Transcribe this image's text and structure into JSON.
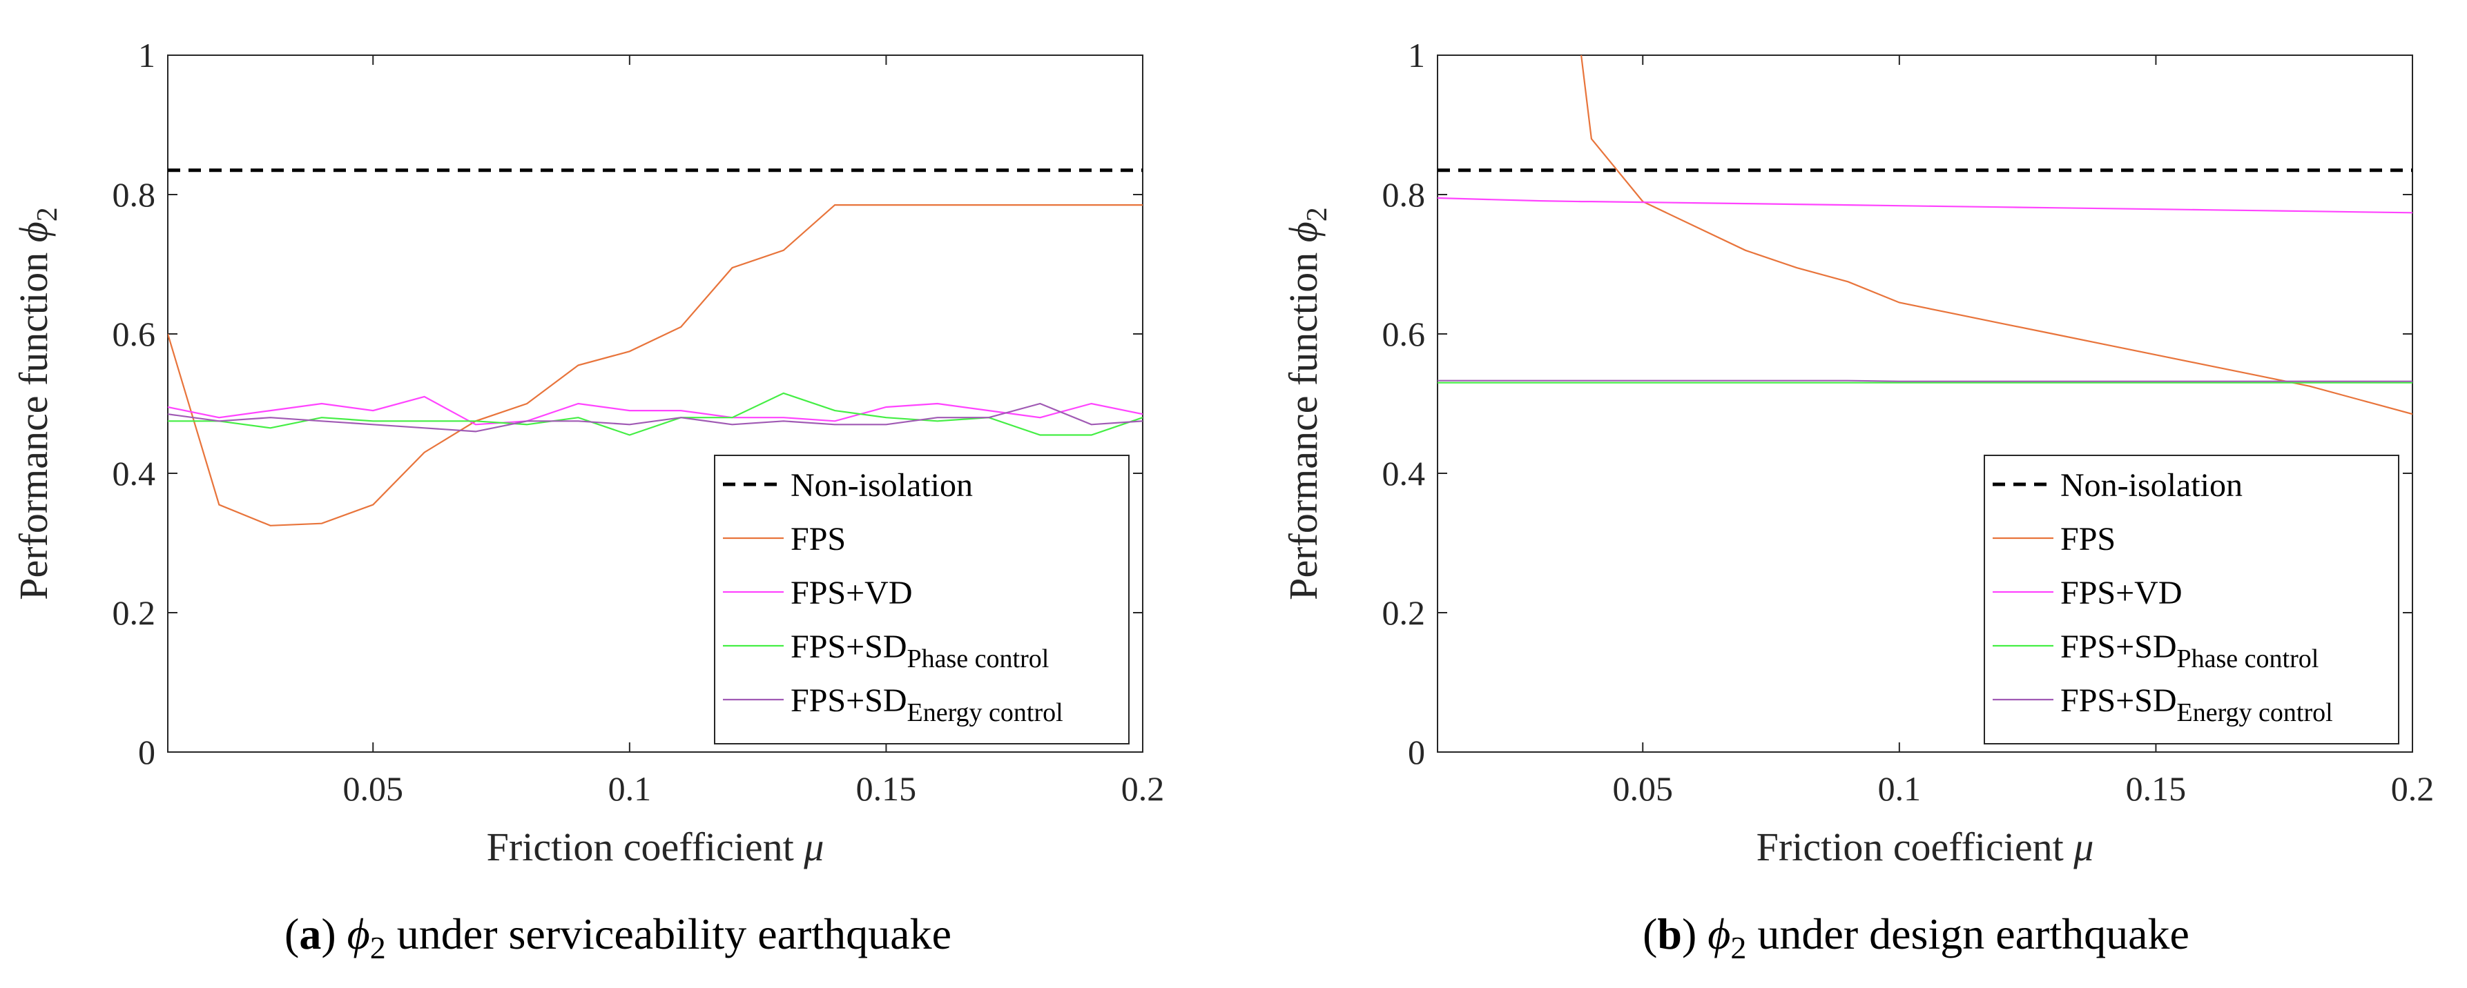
{
  "chart_data": [
    {
      "type": "line",
      "caption_letter": "a",
      "caption_symbol": "ϕ",
      "caption_subscript": "2",
      "caption_rest": " under serviceability earthquake",
      "ylabel_main": "Performance function ",
      "ylabel_symbol": "ϕ",
      "ylabel_subscript": "2",
      "xlabel_main": "Friction coefficient ",
      "xlabel_symbol": "μ",
      "xlim": [
        0.01,
        0.2
      ],
      "ylim": [
        0,
        1
      ],
      "xticks": [
        {
          "v": 0.05,
          "label": "0.05"
        },
        {
          "v": 0.1,
          "label": "0.1"
        },
        {
          "v": 0.15,
          "label": "0.15"
        },
        {
          "v": 0.2,
          "label": "0.2"
        }
      ],
      "yticks": [
        {
          "v": 0,
          "label": "0"
        },
        {
          "v": 0.2,
          "label": "0.2"
        },
        {
          "v": 0.4,
          "label": "0.4"
        },
        {
          "v": 0.6,
          "label": "0.6"
        },
        {
          "v": 0.8,
          "label": "0.8"
        },
        {
          "v": 1,
          "label": "1"
        }
      ],
      "x": [
        0.01,
        0.02,
        0.03,
        0.04,
        0.05,
        0.06,
        0.07,
        0.08,
        0.09,
        0.1,
        0.11,
        0.12,
        0.13,
        0.14,
        0.15,
        0.16,
        0.17,
        0.18,
        0.19,
        0.2
      ],
      "series": [
        {
          "name": "Non-isolation",
          "color": "#000000",
          "dash": true,
          "values": [
            0.835,
            0.835,
            0.835,
            0.835,
            0.835,
            0.835,
            0.835,
            0.835,
            0.835,
            0.835,
            0.835,
            0.835,
            0.835,
            0.835,
            0.835,
            0.835,
            0.835,
            0.835,
            0.835,
            0.835
          ]
        },
        {
          "name": "FPS",
          "color": "#e8743b",
          "dash": false,
          "values": [
            0.6,
            0.355,
            0.325,
            0.328,
            0.355,
            0.43,
            0.475,
            0.5,
            0.555,
            0.575,
            0.61,
            0.695,
            0.72,
            0.785,
            0.785,
            0.785,
            0.785,
            0.785,
            0.785,
            0.785
          ]
        },
        {
          "name": "FPS+VD",
          "color": "#ff44ff",
          "dash": false,
          "values": [
            0.495,
            0.48,
            0.49,
            0.5,
            0.49,
            0.51,
            0.47,
            0.475,
            0.5,
            0.49,
            0.49,
            0.48,
            0.48,
            0.475,
            0.495,
            0.5,
            0.49,
            0.48,
            0.5,
            0.485
          ]
        },
        {
          "name": "FPS+SD",
          "sub": "Phase control",
          "color": "#44ee44",
          "dash": false,
          "values": [
            0.475,
            0.475,
            0.465,
            0.48,
            0.475,
            0.475,
            0.475,
            0.47,
            0.48,
            0.455,
            0.48,
            0.48,
            0.515,
            0.49,
            0.48,
            0.475,
            0.48,
            0.455,
            0.455,
            0.48
          ]
        },
        {
          "name": "FPS+SD",
          "sub": "Energy control",
          "color": "#a05ab4",
          "dash": false,
          "values": [
            0.485,
            0.475,
            0.48,
            0.475,
            0.47,
            0.465,
            0.46,
            0.475,
            0.475,
            0.47,
            0.48,
            0.47,
            0.475,
            0.47,
            0.47,
            0.48,
            0.48,
            0.5,
            0.47,
            0.475
          ]
        }
      ]
    },
    {
      "type": "line",
      "caption_letter": "b",
      "caption_symbol": "ϕ",
      "caption_subscript": "2",
      "caption_rest": " under design earthquake",
      "ylabel_main": "Performance function ",
      "ylabel_symbol": "ϕ",
      "ylabel_subscript": "2",
      "xlabel_main": "Friction coefficient ",
      "xlabel_symbol": "μ",
      "xlim": [
        0.01,
        0.2
      ],
      "ylim": [
        0,
        1
      ],
      "xticks": [
        {
          "v": 0.05,
          "label": "0.05"
        },
        {
          "v": 0.1,
          "label": "0.1"
        },
        {
          "v": 0.15,
          "label": "0.15"
        },
        {
          "v": 0.2,
          "label": "0.2"
        }
      ],
      "yticks": [
        {
          "v": 0,
          "label": "0"
        },
        {
          "v": 0.2,
          "label": "0.2"
        },
        {
          "v": 0.4,
          "label": "0.4"
        },
        {
          "v": 0.6,
          "label": "0.6"
        },
        {
          "v": 0.8,
          "label": "0.8"
        },
        {
          "v": 1,
          "label": "1"
        }
      ],
      "x": [
        0.01,
        0.02,
        0.03,
        0.038,
        0.04,
        0.05,
        0.06,
        0.07,
        0.08,
        0.09,
        0.1,
        0.11,
        0.12,
        0.13,
        0.14,
        0.15,
        0.16,
        0.17,
        0.18,
        0.19,
        0.2
      ],
      "series": [
        {
          "name": "Non-isolation",
          "color": "#000000",
          "dash": true,
          "values": [
            0.835,
            0.835,
            0.835,
            0.835,
            0.835,
            0.835,
            0.835,
            0.835,
            0.835,
            0.835,
            0.835,
            0.835,
            0.835,
            0.835,
            0.835,
            0.835,
            0.835,
            0.835,
            0.835,
            0.835,
            0.835
          ]
        },
        {
          "name": "FPS",
          "color": "#e8743b",
          "dash": false,
          "values": [
            null,
            null,
            null,
            1.0,
            0.88,
            0.79,
            0.755,
            0.72,
            0.695,
            0.675,
            0.645,
            0.63,
            0.615,
            0.6,
            0.585,
            0.57,
            0.555,
            0.54,
            0.525,
            0.505,
            0.485
          ]
        },
        {
          "name": "FPS+VD",
          "color": "#ff44ff",
          "dash": false,
          "values": [
            0.795,
            0.793,
            0.791,
            0.79,
            0.79,
            0.789,
            0.788,
            0.787,
            0.786,
            0.785,
            0.784,
            0.783,
            0.782,
            0.781,
            0.78,
            0.779,
            0.778,
            0.777,
            0.776,
            0.775,
            0.774
          ]
        },
        {
          "name": "FPS+SD",
          "sub": "Phase control",
          "color": "#44ee44",
          "dash": false,
          "values": [
            0.53,
            0.53,
            0.53,
            0.53,
            0.53,
            0.53,
            0.53,
            0.53,
            0.53,
            0.53,
            0.53,
            0.53,
            0.53,
            0.53,
            0.53,
            0.53,
            0.53,
            0.53,
            0.53,
            0.53,
            0.53
          ]
        },
        {
          "name": "FPS+SD",
          "sub": "Energy control",
          "color": "#a05ab4",
          "dash": false,
          "values": [
            0.533,
            0.533,
            0.533,
            0.533,
            0.533,
            0.533,
            0.533,
            0.533,
            0.533,
            0.533,
            0.532,
            0.532,
            0.532,
            0.532,
            0.532,
            0.532,
            0.532,
            0.532,
            0.532,
            0.532,
            0.532
          ]
        }
      ]
    }
  ]
}
